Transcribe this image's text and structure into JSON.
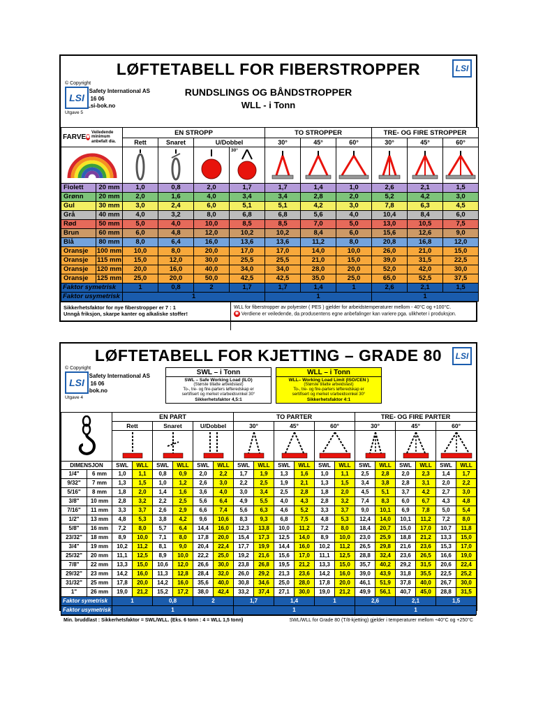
{
  "fiber": {
    "title": "LØFTETABELL FOR FIBERSTROPPER",
    "subtitle1": "RUNDSLINGS OG BÅNDSTROPPER",
    "subtitle2": "WLL - i Tonn",
    "copyright": "© Copyright",
    "logo_text": "LSI",
    "company_name": "Lifting & Safety International AS",
    "phone": "Tlf.  32 80 16 06",
    "website": "www.Lsi-bok.no",
    "edition": "Utgave 5",
    "headers": {
      "farve": "FARVE",
      "dia_note": "Veiledende minimum anbefalt dia.",
      "groups": [
        "EN STROPP",
        "TO STROPPER",
        "TRE- OG FIRE STROPPER"
      ],
      "en_stropp": [
        "Rett",
        "Snaret",
        "U/Dobbel"
      ],
      "u_dobbel_angle": "30°",
      "angles": [
        "30°",
        "45°",
        "60°"
      ]
    },
    "rows": [
      {
        "name": "Fiolett",
        "mm": "20 mm",
        "bg": "#b49bd9",
        "values": [
          "1,0",
          "0,8",
          "2,0",
          "1,7",
          "1,7",
          "1,4",
          "1,0",
          "2,6",
          "2,1",
          "1,5"
        ]
      },
      {
        "name": "Grønn",
        "mm": "20 mm",
        "bg": "#7ec47a",
        "values": [
          "2,0",
          "1,6",
          "4,0",
          "3,4",
          "3,4",
          "2,8",
          "2,0",
          "5,2",
          "4,2",
          "3,0"
        ]
      },
      {
        "name": "Gul",
        "mm": "30 mm",
        "bg": "#f3ef63",
        "values": [
          "3,0",
          "2,4",
          "6,0",
          "5,1",
          "5,1",
          "4,2",
          "3,0",
          "7,8",
          "6,3",
          "4,5"
        ]
      },
      {
        "name": "Grå",
        "mm": "40 mm",
        "bg": "#bcbcbc",
        "values": [
          "4,0",
          "3,2",
          "8,0",
          "6,8",
          "6,8",
          "5,6",
          "4,0",
          "10,4",
          "8,4",
          "6,0"
        ]
      },
      {
        "name": "Rød",
        "mm": "50 mm",
        "bg": "#e66a5a",
        "values": [
          "5,0",
          "4,0",
          "10,0",
          "8,5",
          "8,5",
          "7,0",
          "5,0",
          "13,0",
          "10,5",
          "7,5"
        ]
      },
      {
        "name": "Brun",
        "mm": "60 mm",
        "bg": "#cc9966",
        "values": [
          "6,0",
          "4,8",
          "12,0",
          "10,2",
          "10,2",
          "8,4",
          "6,0",
          "15,6",
          "12,6",
          "9,0"
        ]
      },
      {
        "name": "Blå",
        "mm": "80 mm",
        "bg": "#74a3dc",
        "values": [
          "8,0",
          "6,4",
          "16,0",
          "13,6",
          "13,6",
          "11,2",
          "8,0",
          "20,8",
          "16,8",
          "12,0"
        ]
      },
      {
        "name": "Oransje",
        "mm": "100 mm",
        "bg": "#f8a83b",
        "values": [
          "10,0",
          "8,0",
          "20,0",
          "17,0",
          "17,0",
          "14,0",
          "10,0",
          "26,0",
          "21,0",
          "15,0"
        ]
      },
      {
        "name": "Oransje",
        "mm": "115 mm",
        "bg": "#f8a83b",
        "values": [
          "15,0",
          "12,0",
          "30,0",
          "25,5",
          "25,5",
          "21,0",
          "15,0",
          "39,0",
          "31,5",
          "22,5"
        ]
      },
      {
        "name": "Oransje",
        "mm": "120 mm",
        "bg": "#f8a83b",
        "values": [
          "20,0",
          "16,0",
          "40,0",
          "34,0",
          "34,0",
          "28,0",
          "20,0",
          "52,0",
          "42,0",
          "30,0"
        ]
      },
      {
        "name": "Oransje",
        "mm": "125 mm",
        "bg": "#f8a83b",
        "values": [
          "25,0",
          "20,0",
          "50,0",
          "42,5",
          "42,5",
          "35,0",
          "25,0",
          "65,0",
          "52,5",
          "37,5"
        ]
      }
    ],
    "faktor_symetrisk": {
      "label": "Faktor symetrisk",
      "values": [
        "1",
        "0,8",
        "2",
        "1,7",
        "1,7",
        "1,4",
        "1",
        "2,6",
        "2,1",
        "1,5"
      ]
    },
    "faktor_usymetrisk": {
      "label": "Faktor usymetrisk",
      "values": [
        "1",
        "1",
        "1"
      ]
    },
    "footnote_left1": "Sikkerhetsfaktor for nye fiberstropper er 7 : 1",
    "footnote_left2": "Unngå friksjon, skarpe kanter og alkaliske stoffer!",
    "footnote_right1": "WLL for fiberstropper av polyester ( PES ) gjelder for arbeidstemperaturer mellom - 40°C og +100°C.",
    "footnote_right2": "Verdiene er veiledende, da produsentens egne anbefalinger kan variere pga. ulikheter i produksjon.",
    "accent_blue": "#1a5cad",
    "badge_red": "#dd1111"
  },
  "chain": {
    "title": "LØFTETABELL FOR KJETTING – GRADE 80",
    "copyright": "© Copyright",
    "logo_text": "LSI",
    "company_name": "Lifting & Safety International AS",
    "phone": "Tlf.  32 80 16 06",
    "website": "www.Lsi-bok.no",
    "edition": "Utgave 4",
    "swl_box": {
      "title": "SWL – i Tonn",
      "line1": "SWL – Safe Working Load  (ILO)",
      "line2": "(Største tillatte arbeidslast)",
      "line3": "To-, tre- og fire-parters løfteredskap er",
      "line4": "sertifisert og merket v/arbeidsvinkel 30°",
      "line5": "Sikkerhetsfaktor 4,5:1"
    },
    "wll_box": {
      "title": "WLL – i Tonn",
      "line1": "WLL– Working Load Limit (ISO/CEN )",
      "line2": "(Største tillatte arbeidslast)",
      "line3": "To-, tre- og fire-parters løfteredskap er",
      "line4": "sertifisert og merket v/arbeidsvinkel 30°",
      "line5": "Sikkerhetsfaktor 4:1"
    },
    "headers": {
      "dimensjon": "DIMENSJON",
      "groups": [
        "EN PART",
        "TO PARTER",
        "TRE- OG FIRE PARTER"
      ],
      "en_part": [
        "Rett",
        "Snaret",
        "U/Dobbel"
      ],
      "angles": [
        "30°",
        "45°",
        "60°"
      ],
      "swl": "SWL",
      "wll": "WLL"
    },
    "rows": [
      {
        "inch": "1/4\"",
        "mm": "6 mm",
        "values": [
          "1,0",
          "1,1",
          "0,8",
          "0,9",
          "2,0",
          "2,2",
          "1,7",
          "1,9",
          "1,3",
          "1,6",
          "1,0",
          "1,1",
          "2,5",
          "2,8",
          "2,0",
          "2,3",
          "1,4",
          "1,7"
        ]
      },
      {
        "inch": "9/32\"",
        "mm": "7 mm",
        "values": [
          "1,3",
          "1,5",
          "1,0",
          "1,2",
          "2,6",
          "3,0",
          "2,2",
          "2,5",
          "1,9",
          "2,1",
          "1,3",
          "1,5",
          "3,4",
          "3,8",
          "2,8",
          "3,1",
          "2,0",
          "2,2"
        ]
      },
      {
        "inch": "5/16\"",
        "mm": "8 mm",
        "values": [
          "1,8",
          "2,0",
          "1,4",
          "1,6",
          "3,6",
          "4,0",
          "3,0",
          "3,4",
          "2,5",
          "2,8",
          "1,8",
          "2,0",
          "4,5",
          "5,1",
          "3,7",
          "4,2",
          "2,7",
          "3,0"
        ]
      },
      {
        "inch": "3/8\"",
        "mm": "10 mm",
        "values": [
          "2,8",
          "3,2",
          "2,2",
          "2,5",
          "5,6",
          "6,4",
          "4,9",
          "5,5",
          "4,0",
          "4,3",
          "2,8",
          "3,2",
          "7,4",
          "8,3",
          "6,0",
          "6,7",
          "4,3",
          "4,8"
        ]
      },
      {
        "inch": "7/16\"",
        "mm": "11 mm",
        "values": [
          "3,3",
          "3,7",
          "2,6",
          "2,9",
          "6,6",
          "7,4",
          "5,6",
          "6,3",
          "4,6",
          "5,2",
          "3,3",
          "3,7",
          "9,0",
          "10,1",
          "6,9",
          "7,8",
          "5,0",
          "5,4"
        ]
      },
      {
        "inch": "1/2\"",
        "mm": "13 mm",
        "values": [
          "4,8",
          "5,3",
          "3,8",
          "4,2",
          "9,6",
          "10,6",
          "8,3",
          "9,3",
          "6,8",
          "7,5",
          "4,8",
          "5,3",
          "12,4",
          "14,0",
          "10,1",
          "11,2",
          "7,2",
          "8,0"
        ]
      },
      {
        "inch": "5/8\"",
        "mm": "16 mm",
        "values": [
          "7,2",
          "8,0",
          "5,7",
          "6,4",
          "14,4",
          "16,0",
          "12,3",
          "13,8",
          "10,0",
          "11,2",
          "7,2",
          "8,0",
          "18,4",
          "20,7",
          "15,0",
          "17,0",
          "10,7",
          "11,8"
        ]
      },
      {
        "inch": "23/32\"",
        "mm": "18 mm",
        "values": [
          "8,9",
          "10,0",
          "7,1",
          "8,0",
          "17,8",
          "20,0",
          "15,4",
          "17,3",
          "12,5",
          "14,0",
          "8,9",
          "10,0",
          "23,0",
          "25,9",
          "18,8",
          "21,2",
          "13,3",
          "15,0"
        ]
      },
      {
        "inch": "3/4\"",
        "mm": "19 mm",
        "values": [
          "10,2",
          "11,2",
          "8,1",
          "9,0",
          "20,4",
          "22,4",
          "17,7",
          "19,9",
          "14,4",
          "16,0",
          "10,2",
          "11,2",
          "26,5",
          "29,8",
          "21,6",
          "23,6",
          "15,3",
          "17,0"
        ]
      },
      {
        "inch": "25/32\"",
        "mm": "20 mm",
        "values": [
          "11,1",
          "12,5",
          "8,9",
          "10,0",
          "22,2",
          "25,0",
          "19,2",
          "21,6",
          "15,6",
          "17,0",
          "11,1",
          "12,5",
          "28,8",
          "32,4",
          "23,6",
          "26,5",
          "16,6",
          "19,0"
        ]
      },
      {
        "inch": "7/8\"",
        "mm": "22 mm",
        "values": [
          "13,3",
          "15,0",
          "10,6",
          "12,0",
          "26,6",
          "30,0",
          "23,8",
          "26,8",
          "19,5",
          "21,2",
          "13,3",
          "15,0",
          "35,7",
          "40,2",
          "29,2",
          "31,5",
          "20,6",
          "22,4"
        ]
      },
      {
        "inch": "29/32\"",
        "mm": "23 mm",
        "values": [
          "14,2",
          "16,0",
          "11,3",
          "12,8",
          "28,4",
          "32,0",
          "26,0",
          "29,2",
          "21,3",
          "23,6",
          "14,2",
          "16,0",
          "39,0",
          "43,9",
          "31,8",
          "35,5",
          "22,5",
          "25,2"
        ]
      },
      {
        "inch": "31/32\"",
        "mm": "25 mm",
        "values": [
          "17,8",
          "20,0",
          "14,2",
          "16,0",
          "35,6",
          "40,0",
          "30,8",
          "34,6",
          "25,0",
          "28,0",
          "17,8",
          "20,0",
          "46,1",
          "51,9",
          "37,8",
          "40,0",
          "26,7",
          "30,0"
        ]
      },
      {
        "inch": "1\"",
        "mm": "26 mm",
        "values": [
          "19,0",
          "21,2",
          "15,2",
          "17,2",
          "38,0",
          "42,4",
          "33,2",
          "37,4",
          "27,1",
          "30,0",
          "19,0",
          "21,2",
          "49,9",
          "56,1",
          "40,7",
          "45,0",
          "28,8",
          "31,5"
        ]
      }
    ],
    "faktor_symetrisk": {
      "label": "Faktor symetrisk",
      "values": [
        "1",
        "0,8",
        "2",
        "1,7",
        "1,4",
        "1",
        "2,6",
        "2,1",
        "1,5"
      ]
    },
    "faktor_usymetrisk": {
      "label": "Faktor usymetrisk",
      "values": [
        "1",
        "1",
        "1"
      ]
    },
    "footnote_left": "Min. bruddlast : Sikkerhetsfaktor = SWL/WLL. (Eks. 6 tonn : 4 = WLL 1,5 tonn)",
    "footnote_right": "SWL/WLL for Grade 80 (T/8-kjetting) gjelder i temperaturer mellom ÷40°C og +250°C",
    "wll_yellow": "#ffff00",
    "faktor_blue": "#1a5cad"
  }
}
